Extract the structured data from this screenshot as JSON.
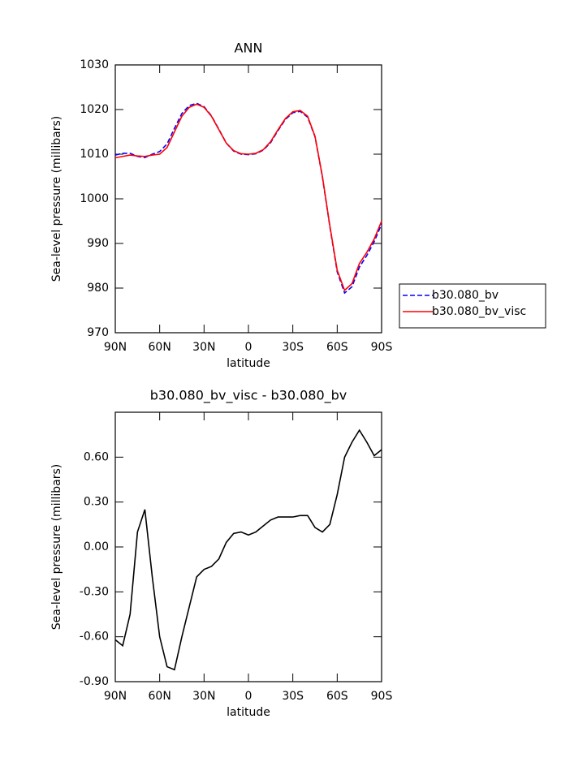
{
  "chart_data": [
    {
      "type": "line",
      "title": "ANN",
      "x_label": "latitude",
      "y_label": "Sea-level pressure (millibars)",
      "x": [
        90,
        85,
        80,
        75,
        70,
        65,
        60,
        55,
        50,
        45,
        40,
        35,
        30,
        25,
        20,
        15,
        10,
        5,
        0,
        -5,
        -10,
        -15,
        -20,
        -25,
        -30,
        -35,
        -40,
        -45,
        -50,
        -55,
        -60,
        -65,
        -70,
        -75,
        -80,
        -85,
        -90
      ],
      "xlim": [
        90,
        -90
      ],
      "xticks": [
        {
          "value": 90,
          "label": "90N"
        },
        {
          "value": 60,
          "label": "60N"
        },
        {
          "value": 30,
          "label": "30N"
        },
        0,
        {
          "value": -30,
          "label": "30S"
        },
        {
          "value": -60,
          "label": "60S"
        },
        {
          "value": -90,
          "label": "90S"
        }
      ],
      "ylim": [
        970,
        1030
      ],
      "yticks": [
        970,
        980,
        990,
        1000,
        1010,
        1020,
        1030
      ],
      "legend": "right",
      "series": [
        {
          "name": "b30.080_bv",
          "color": "#0000ff",
          "line_style": "dashed",
          "values": [
            1009.8,
            1010.2,
            1010.2,
            1009.5,
            1009.25,
            1010,
            1010.6,
            1012.3,
            1015.8,
            1019.1,
            1020.9,
            1021.4,
            1020.65,
            1018.6,
            1015.6,
            1012.5,
            1010.7,
            1010.0,
            1009.9,
            1010.1,
            1010.9,
            1012.6,
            1015.3,
            1017.8,
            1019.3,
            1019.6,
            1018.3,
            1013.9,
            1004.9,
            993.85,
            983.65,
            978.9,
            980.3,
            984.7,
            987.3,
            990.4,
            994.35
          ]
        },
        {
          "name": "b30.080_bv_visc",
          "color": "#ff0000",
          "line_style": "solid",
          "values": [
            1009.2,
            1009.5,
            1009.8,
            1009.6,
            1009.5,
            1009.8,
            1010.0,
            1011.5,
            1015,
            1018.5,
            1020.5,
            1021.2,
            1020.5,
            1018.5,
            1015.5,
            1012.5,
            1010.8,
            1010.1,
            1010.0,
            1010.2,
            1011,
            1012.8,
            1015.5,
            1018,
            1019.5,
            1019.8,
            1018.5,
            1014,
            1005,
            994,
            984,
            979.5,
            981,
            985.5,
            988,
            991,
            995
          ]
        }
      ]
    },
    {
      "type": "line",
      "title": "b30.080_bv_visc - b30.080_bv",
      "x_label": "latitude",
      "y_label": "Sea-level pressure (millibars)",
      "x": [
        90,
        85,
        80,
        75,
        70,
        65,
        60,
        55,
        50,
        45,
        40,
        35,
        30,
        25,
        20,
        15,
        10,
        5,
        0,
        -5,
        -10,
        -15,
        -20,
        -25,
        -30,
        -35,
        -40,
        -45,
        -50,
        -55,
        -60,
        -65,
        -70,
        -75,
        -80,
        -85,
        -90
      ],
      "xlim": [
        90,
        -90
      ],
      "xticks": [
        {
          "value": 90,
          "label": "90N"
        },
        {
          "value": 60,
          "label": "60N"
        },
        {
          "value": 30,
          "label": "30N"
        },
        0,
        {
          "value": -30,
          "label": "30S"
        },
        {
          "value": -60,
          "label": "60S"
        },
        {
          "value": -90,
          "label": "90S"
        }
      ],
      "ylim": [
        -0.9,
        0.9
      ],
      "yticks": [
        {
          "value": -0.9,
          "label": "-0.90"
        },
        {
          "value": -0.6,
          "label": "-0.60"
        },
        {
          "value": -0.3,
          "label": "-0.30"
        },
        {
          "value": 0,
          "label": "0.00"
        },
        {
          "value": 0.3,
          "label": "0.30"
        },
        {
          "value": 0.6,
          "label": "0.60"
        }
      ],
      "series": [
        {
          "color": "#000000",
          "line_style": "solid",
          "values": [
            -0.62,
            -0.66,
            -0.45,
            0.1,
            0.25,
            -0.2,
            -0.6,
            -0.8,
            -0.82,
            -0.6,
            -0.4,
            -0.2,
            -0.15,
            -0.13,
            -0.08,
            0.03,
            0.09,
            0.1,
            0.08,
            0.1,
            0.14,
            0.18,
            0.2,
            0.2,
            0.2,
            0.21,
            0.21,
            0.13,
            0.1,
            0.15,
            0.35,
            0.6,
            0.7,
            0.78,
            0.7,
            0.61,
            0.65
          ]
        }
      ]
    }
  ]
}
